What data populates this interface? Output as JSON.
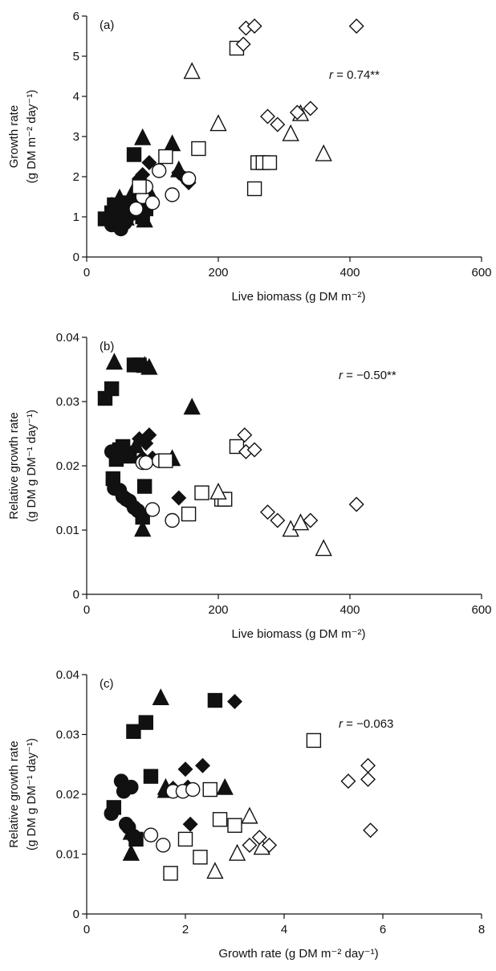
{
  "chart_data": [
    {
      "type": "scatter",
      "panel_label": "(a)",
      "annotation": {
        "prefix": "r",
        "text": " = 0.74**"
      },
      "xlabel": "Live biomass (g DM m⁻²)",
      "ylabel_lines": [
        "Growth rate",
        "(g DM m⁻² day⁻¹)"
      ],
      "xlim": [
        0,
        600
      ],
      "ylim": [
        0,
        6
      ],
      "xticks": [
        "0",
        "200",
        "400",
        "600"
      ],
      "yticks": [
        "0",
        "1",
        "2",
        "3",
        "4",
        "5",
        "6"
      ],
      "series": [
        {
          "marker": "filled-square",
          "points": [
            [
              28,
              0.95
            ],
            [
              38,
              1.1
            ],
            [
              42,
              1.3
            ],
            [
              45,
              0.85
            ],
            [
              48,
              1.0
            ],
            [
              55,
              1.2
            ],
            [
              60,
              1.05
            ],
            [
              65,
              1.35
            ],
            [
              72,
              2.55
            ],
            [
              80,
              1.4
            ],
            [
              85,
              1.0
            ],
            [
              90,
              1.2
            ]
          ]
        },
        {
          "marker": "filled-triangle",
          "points": [
            [
              38,
              1.25
            ],
            [
              50,
              1.45
            ],
            [
              60,
              0.95
            ],
            [
              70,
              1.6
            ],
            [
              80,
              1.5
            ],
            [
              85,
              2.95
            ],
            [
              88,
              0.9
            ],
            [
              95,
              1.6
            ],
            [
              130,
              2.8
            ],
            [
              140,
              2.15
            ]
          ]
        },
        {
          "marker": "filled-circle",
          "points": [
            [
              38,
              0.8
            ],
            [
              42,
              0.95
            ],
            [
              48,
              1.0
            ],
            [
              52,
              0.7
            ],
            [
              58,
              0.85
            ],
            [
              62,
              1.0
            ],
            [
              68,
              1.2
            ],
            [
              72,
              1.1
            ],
            [
              80,
              1.3
            ]
          ]
        },
        {
          "marker": "filled-diamond",
          "points": [
            [
              80,
              1.95
            ],
            [
              85,
              2.05
            ],
            [
              90,
              1.75
            ],
            [
              95,
              2.35
            ],
            [
              140,
              2.1
            ],
            [
              150,
              1.95
            ],
            [
              155,
              1.85
            ]
          ]
        },
        {
          "marker": "open-circle",
          "points": [
            [
              75,
              1.2
            ],
            [
              85,
              1.5
            ],
            [
              90,
              1.75
            ],
            [
              100,
              1.35
            ],
            [
              110,
              2.15
            ],
            [
              130,
              1.55
            ],
            [
              155,
              1.95
            ]
          ]
        },
        {
          "marker": "open-square",
          "points": [
            [
              80,
              1.75
            ],
            [
              120,
              2.5
            ],
            [
              170,
              2.7
            ],
            [
              228,
              5.2
            ],
            [
              255,
              1.7
            ],
            [
              260,
              2.35
            ],
            [
              268,
              2.35
            ],
            [
              278,
              2.35
            ]
          ]
        },
        {
          "marker": "open-triangle",
          "points": [
            [
              160,
              4.6
            ],
            [
              200,
              3.3
            ],
            [
              310,
              3.05
            ],
            [
              325,
              3.55
            ],
            [
              360,
              2.55
            ]
          ]
        },
        {
          "marker": "open-diamond",
          "points": [
            [
              238,
              5.3
            ],
            [
              242,
              5.7
            ],
            [
              255,
              5.75
            ],
            [
              275,
              3.5
            ],
            [
              290,
              3.3
            ],
            [
              320,
              3.6
            ],
            [
              340,
              3.7
            ],
            [
              410,
              5.75
            ]
          ]
        }
      ]
    },
    {
      "type": "scatter",
      "panel_label": "(b)",
      "annotation": {
        "prefix": "r",
        "text": " = −0.50**"
      },
      "xlabel": "Live biomass (g DM m⁻²)",
      "ylabel_lines": [
        "Relative growth rate",
        "(g DM g DM⁻¹ day⁻¹)"
      ],
      "xlim": [
        0,
        600
      ],
      "ylim": [
        0,
        0.04
      ],
      "xticks": [
        "0",
        "200",
        "400",
        "600"
      ],
      "yticks": [
        "0",
        "0.01",
        "0.02",
        "0.03",
        "0.04"
      ],
      "series": [
        {
          "marker": "filled-square",
          "points": [
            [
              28,
              0.0305
            ],
            [
              38,
              0.032
            ],
            [
              40,
              0.018
            ],
            [
              45,
              0.021
            ],
            [
              50,
              0.0225
            ],
            [
              55,
              0.023
            ],
            [
              60,
              0.022
            ],
            [
              65,
              0.0215
            ],
            [
              72,
              0.0357
            ],
            [
              80,
              0.0357
            ],
            [
              85,
              0.012
            ],
            [
              88,
              0.0168
            ]
          ]
        },
        {
          "marker": "filled-triangle",
          "points": [
            [
              42,
              0.036
            ],
            [
              60,
              0.022
            ],
            [
              75,
              0.023
            ],
            [
              85,
              0.01
            ],
            [
              88,
              0.0355
            ],
            [
              95,
              0.0352
            ],
            [
              130,
              0.021
            ],
            [
              160,
              0.029
            ]
          ]
        },
        {
          "marker": "filled-circle",
          "points": [
            [
              38,
              0.0222
            ],
            [
              40,
              0.0175
            ],
            [
              42,
              0.0165
            ],
            [
              45,
              0.0212
            ],
            [
              50,
              0.0162
            ],
            [
              55,
              0.0152
            ],
            [
              60,
              0.0148
            ],
            [
              65,
              0.0145
            ],
            [
              72,
              0.0135
            ],
            [
              78,
              0.013
            ]
          ]
        },
        {
          "marker": "filled-diamond",
          "points": [
            [
              80,
              0.0242
            ],
            [
              85,
              0.0212
            ],
            [
              90,
              0.0235
            ],
            [
              95,
              0.0248
            ],
            [
              100,
              0.0212
            ],
            [
              140,
              0.015
            ]
          ]
        },
        {
          "marker": "open-circle",
          "points": [
            [
              85,
              0.0205
            ],
            [
              90,
              0.0205
            ],
            [
              100,
              0.0132
            ],
            [
              110,
              0.0208
            ],
            [
              130,
              0.0115
            ]
          ]
        },
        {
          "marker": "open-square",
          "points": [
            [
              120,
              0.0208
            ],
            [
              155,
              0.0125
            ],
            [
              175,
              0.0158
            ],
            [
              228,
              0.023
            ],
            [
              205,
              0.0148
            ],
            [
              210,
              0.0148
            ]
          ]
        },
        {
          "marker": "open-triangle",
          "points": [
            [
              200,
              0.0158
            ],
            [
              310,
              0.01
            ],
            [
              325,
              0.011
            ],
            [
              360,
              0.007
            ]
          ]
        },
        {
          "marker": "open-diamond",
          "points": [
            [
              240,
              0.0248
            ],
            [
              242,
              0.0222
            ],
            [
              255,
              0.0225
            ],
            [
              275,
              0.0128
            ],
            [
              290,
              0.0115
            ],
            [
              340,
              0.0115
            ],
            [
              410,
              0.014
            ]
          ]
        }
      ]
    },
    {
      "type": "scatter",
      "panel_label": "(c)",
      "annotation": {
        "prefix": "r",
        "text": " = −0.063"
      },
      "xlabel": "Growth rate (g DM m⁻² day⁻¹)",
      "ylabel_lines": [
        "Relative growth rate",
        "(g DM g DM⁻¹ day⁻¹)"
      ],
      "xlim": [
        0,
        8
      ],
      "ylim": [
        0,
        0.04
      ],
      "xticks": [
        "0",
        "2",
        "4",
        "6",
        "8"
      ],
      "yticks": [
        "0",
        "0.01",
        "0.02",
        "0.03",
        "0.04"
      ],
      "series": [
        {
          "marker": "filled-square",
          "points": [
            [
              0.95,
              0.0305
            ],
            [
              1.2,
              0.032
            ],
            [
              1.0,
              0.0125
            ],
            [
              1.3,
              0.023
            ],
            [
              2.6,
              0.0357
            ],
            [
              0.55,
              0.0178
            ]
          ]
        },
        {
          "marker": "filled-triangle",
          "points": [
            [
              1.5,
              0.036
            ],
            [
              0.9,
              0.01
            ],
            [
              0.9,
              0.0135
            ],
            [
              1.6,
              0.0205
            ],
            [
              1.6,
              0.021
            ],
            [
              2.8,
              0.021
            ]
          ]
        },
        {
          "marker": "filled-circle",
          "points": [
            [
              0.5,
              0.0168
            ],
            [
              0.7,
              0.0222
            ],
            [
              0.75,
              0.0205
            ],
            [
              0.8,
              0.015
            ],
            [
              0.85,
              0.0145
            ],
            [
              0.9,
              0.0212
            ],
            [
              0.95,
              0.013
            ]
          ]
        },
        {
          "marker": "filled-diamond",
          "points": [
            [
              2.0,
              0.0242
            ],
            [
              2.05,
              0.0212
            ],
            [
              2.1,
              0.015
            ],
            [
              2.35,
              0.0248
            ],
            [
              3.0,
              0.0355
            ],
            [
              1.75,
              0.021
            ]
          ]
        },
        {
          "marker": "open-circle",
          "points": [
            [
              1.3,
              0.0132
            ],
            [
              1.55,
              0.0115
            ],
            [
              1.75,
              0.0205
            ],
            [
              1.95,
              0.0205
            ],
            [
              2.15,
              0.0208
            ]
          ]
        },
        {
          "marker": "open-square",
          "points": [
            [
              1.7,
              0.0068
            ],
            [
              2.0,
              0.0125
            ],
            [
              2.3,
              0.0095
            ],
            [
              2.5,
              0.0208
            ],
            [
              2.7,
              0.0158
            ],
            [
              3.0,
              0.0148
            ],
            [
              4.6,
              0.029
            ]
          ]
        },
        {
          "marker": "open-triangle",
          "points": [
            [
              2.6,
              0.007
            ],
            [
              3.05,
              0.01
            ],
            [
              3.3,
              0.0162
            ],
            [
              3.55,
              0.011
            ]
          ]
        },
        {
          "marker": "open-diamond",
          "points": [
            [
              3.3,
              0.0115
            ],
            [
              3.5,
              0.0128
            ],
            [
              3.7,
              0.0115
            ],
            [
              5.3,
              0.0222
            ],
            [
              5.7,
              0.0248
            ],
            [
              5.7,
              0.0225
            ],
            [
              5.75,
              0.014
            ]
          ]
        }
      ]
    }
  ]
}
